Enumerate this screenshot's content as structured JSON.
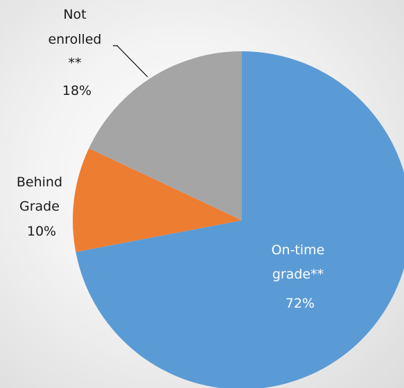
{
  "chart_data": {
    "type": "pie",
    "slices": [
      {
        "label_lines": [
          "On-time",
          "grade**"
        ],
        "pct_text": "72%",
        "value": 72,
        "color": "#5b9bd5"
      },
      {
        "label_lines": [
          "Behind",
          "Grade"
        ],
        "pct_text": "10%",
        "value": 10,
        "color": "#ed7d31"
      },
      {
        "label_lines": [
          "Not",
          "enrolled",
          "**"
        ],
        "pct_text": "18%",
        "value": 18,
        "color": "#a5a5a5"
      }
    ]
  }
}
